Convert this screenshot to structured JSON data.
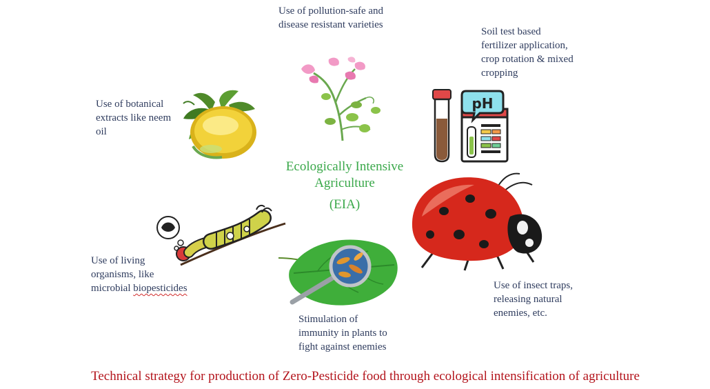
{
  "colors": {
    "text": "#2f3c5e",
    "center": "#3aa84a",
    "caption": "#b3141c"
  },
  "center": {
    "title": "Ecologically Intensive\nAgriculture",
    "abbrev": "(EIA)"
  },
  "labels": {
    "top": "Use of pollution-safe and\ndisease resistant varieties",
    "top_right": "Soil test based\nfertilizer application,\ncrop rotation & mixed\ncropping",
    "left": "Use of botanical\nextracts like neem\noil",
    "bottom_left_l1": "Use of living",
    "bottom_left_l2": "organisms, like",
    "bottom_left_l3_prefix": "microbial ",
    "bottom_left_l3_word": "biopesticides",
    "bottom_center": "Stimulation of\nimmunity in plants to\nfight against enemies",
    "bottom_right": "Use of  insect traps,\nreleasing natural\nenemies, etc."
  },
  "ph_badge": "pH",
  "caption": "Technical strategy for production of Zero-Pesticide food through ecological intensification of agriculture",
  "icons": [
    "pea-plant-icon",
    "soil-test-tube-icon",
    "ph-kit-icon",
    "neem-oil-icon",
    "ladybug-icon",
    "caterpillar-icon",
    "leaf-magnifier-icon"
  ]
}
